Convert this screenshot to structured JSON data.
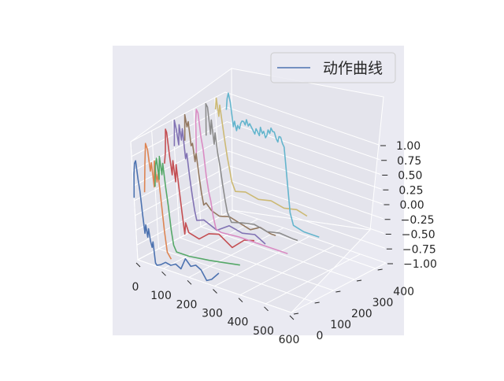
{
  "chart_data": {
    "type": "line3d",
    "title": "",
    "legend": {
      "label": "动作曲线",
      "placement": "top-right"
    },
    "axes": {
      "x": {
        "range": [
          0,
          600
        ],
        "ticks": [
          "0",
          "100",
          "200",
          "300",
          "400",
          "500",
          "600"
        ]
      },
      "y": {
        "range": [
          0,
          450
        ],
        "ticks": [
          "0",
          "100",
          "200",
          "300",
          "400"
        ]
      },
      "z": {
        "range": [
          -1,
          1
        ],
        "ticks": [
          "1.00",
          "0.75",
          "0.50",
          "0.25",
          "0.00",
          "−0.25",
          "−0.50",
          "−0.75",
          "−1.00"
        ]
      }
    },
    "grid": true,
    "series": [
      {
        "color": "#4c72b0",
        "y": 0,
        "points": [
          [
            0,
            0.05
          ],
          [
            5,
            0.45
          ],
          [
            10,
            0.65
          ],
          [
            15,
            0.7
          ],
          [
            20,
            0.4
          ],
          [
            25,
            0.2
          ],
          [
            30,
            -0.2
          ],
          [
            35,
            -0.5
          ],
          [
            40,
            -0.35
          ],
          [
            45,
            -0.55
          ],
          [
            50,
            -0.4
          ],
          [
            55,
            -0.6
          ],
          [
            60,
            -0.7
          ],
          [
            65,
            -0.6
          ],
          [
            70,
            -0.95
          ],
          [
            75,
            -0.98
          ],
          [
            90,
            -0.95
          ],
          [
            110,
            -0.88
          ],
          [
            130,
            -0.9
          ],
          [
            150,
            -0.85
          ],
          [
            170,
            -0.9
          ],
          [
            190,
            -0.7
          ],
          [
            210,
            -0.8
          ],
          [
            230,
            -0.75
          ],
          [
            250,
            -0.8
          ],
          [
            270,
            -0.95
          ],
          [
            290,
            -0.9
          ],
          [
            320,
            -0.75
          ]
        ]
      },
      {
        "color": "#dd8452",
        "y": 50,
        "points": [
          [
            0,
            0.05
          ],
          [
            8,
            0.55
          ],
          [
            15,
            0.9
          ],
          [
            22,
            0.8
          ],
          [
            28,
            0.45
          ],
          [
            34,
            0.6
          ],
          [
            40,
            0.2
          ],
          [
            46,
            0.65
          ],
          [
            52,
            0.3
          ],
          [
            58,
            0.45
          ],
          [
            64,
            0.0
          ],
          [
            70,
            -0.5
          ],
          [
            76,
            -0.85
          ],
          [
            90,
            -0.95
          ]
        ]
      },
      {
        "color": "#55a868",
        "y": 100,
        "points": [
          [
            0,
            0.05
          ],
          [
            6,
            0.4
          ],
          [
            12,
            0.55
          ],
          [
            18,
            0.2
          ],
          [
            24,
            0.6
          ],
          [
            30,
            0.3
          ],
          [
            36,
            0.5
          ],
          [
            42,
            0.1
          ],
          [
            48,
            -0.2
          ],
          [
            54,
            -0.6
          ],
          [
            60,
            -0.85
          ],
          [
            70,
            -0.95
          ],
          [
            120,
            -0.95
          ],
          [
            200,
            -0.9
          ],
          [
            260,
            -0.85
          ],
          [
            320,
            -0.8
          ]
        ]
      },
      {
        "color": "#c44e52",
        "y": 150,
        "points": [
          [
            0,
            0.35
          ],
          [
            6,
            0.55
          ],
          [
            12,
            0.95
          ],
          [
            16,
            0.9
          ],
          [
            22,
            0.5
          ],
          [
            28,
            0.2
          ],
          [
            34,
            0.45
          ],
          [
            40,
            0.1
          ],
          [
            46,
            0.4
          ],
          [
            52,
            0.0
          ],
          [
            58,
            -0.4
          ],
          [
            64,
            -0.75
          ],
          [
            70,
            -0.55
          ],
          [
            80,
            -0.7
          ],
          [
            120,
            -0.75
          ],
          [
            160,
            -0.6
          ],
          [
            200,
            -0.55
          ],
          [
            250,
            -0.7
          ],
          [
            300,
            -0.5
          ],
          [
            340,
            -0.45
          ]
        ]
      },
      {
        "color": "#8172b3",
        "y": 200,
        "points": [
          [
            0,
            0.55
          ],
          [
            6,
            1.0
          ],
          [
            12,
            0.85
          ],
          [
            18,
            0.6
          ],
          [
            24,
            0.95
          ],
          [
            30,
            0.7
          ],
          [
            36,
            0.9
          ],
          [
            42,
            0.4
          ],
          [
            48,
            0.5
          ],
          [
            54,
            0.1
          ],
          [
            60,
            -0.2
          ],
          [
            66,
            -0.45
          ],
          [
            72,
            -0.6
          ],
          [
            100,
            -0.55
          ],
          [
            150,
            -0.65
          ],
          [
            200,
            -0.5
          ],
          [
            250,
            -0.55
          ],
          [
            300,
            -0.5
          ],
          [
            340,
            -0.6
          ]
        ]
      },
      {
        "color": "#937860",
        "y": 250,
        "points": [
          [
            0,
            0.55
          ],
          [
            6,
            1.0
          ],
          [
            12,
            0.8
          ],
          [
            18,
            0.9
          ],
          [
            24,
            0.5
          ],
          [
            30,
            0.55
          ],
          [
            36,
            0.25
          ],
          [
            42,
            0.4
          ],
          [
            48,
            0.05
          ],
          [
            54,
            -0.25
          ],
          [
            60,
            -0.45
          ],
          [
            70,
            -0.4
          ],
          [
            90,
            -0.5
          ],
          [
            120,
            -0.55
          ],
          [
            160,
            -0.5
          ],
          [
            200,
            -0.55
          ],
          [
            240,
            -0.6
          ],
          [
            280,
            -0.5
          ],
          [
            320,
            -0.55
          ],
          [
            340,
            -0.55
          ]
        ]
      },
      {
        "color": "#da8bc3",
        "y": 300,
        "points": [
          [
            0,
            0.25
          ],
          [
            5,
            0.8
          ],
          [
            10,
            1.0
          ],
          [
            16,
            0.95
          ],
          [
            22,
            0.55
          ],
          [
            28,
            0.35
          ],
          [
            34,
            -0.1
          ],
          [
            40,
            -0.35
          ],
          [
            46,
            -0.5
          ],
          [
            52,
            -0.75
          ],
          [
            60,
            -0.95
          ],
          [
            80,
            -0.98
          ],
          [
            150,
            -0.95
          ],
          [
            250,
            -0.95
          ],
          [
            340,
            -0.95
          ]
        ]
      },
      {
        "color": "#8c8c8c",
        "y": 350,
        "points": [
          [
            0,
            0.45
          ],
          [
            6,
            1.0
          ],
          [
            12,
            0.95
          ],
          [
            18,
            0.5
          ],
          [
            24,
            0.75
          ],
          [
            30,
            0.35
          ],
          [
            36,
            0.55
          ],
          [
            42,
            0.2
          ],
          [
            48,
            0.0
          ],
          [
            54,
            -0.3
          ],
          [
            60,
            -0.55
          ],
          [
            66,
            -0.75
          ],
          [
            80,
            -0.9
          ],
          [
            120,
            -0.85
          ],
          [
            170,
            -0.8
          ],
          [
            220,
            -0.85
          ],
          [
            270,
            -0.8
          ],
          [
            320,
            -0.82
          ],
          [
            340,
            -0.82
          ]
        ]
      },
      {
        "color": "#ccb974",
        "y": 400,
        "points": [
          [
            0,
            0.8
          ],
          [
            6,
            1.0
          ],
          [
            12,
            0.7
          ],
          [
            18,
            0.9
          ],
          [
            24,
            0.6
          ],
          [
            30,
            0.3
          ],
          [
            36,
            0.05
          ],
          [
            42,
            -0.15
          ],
          [
            48,
            -0.35
          ],
          [
            60,
            -0.5
          ],
          [
            100,
            -0.45
          ],
          [
            150,
            -0.5
          ],
          [
            200,
            -0.45
          ],
          [
            250,
            -0.5
          ],
          [
            300,
            -0.45
          ],
          [
            340,
            -0.5
          ]
        ]
      },
      {
        "color": "#64b5cd",
        "y": 450,
        "points": [
          [
            0,
            0.7
          ],
          [
            6,
            0.9
          ],
          [
            12,
            1.0
          ],
          [
            18,
            0.85
          ],
          [
            24,
            0.45
          ],
          [
            30,
            0.55
          ],
          [
            36,
            0.4
          ],
          [
            42,
            0.5
          ],
          [
            48,
            0.45
          ],
          [
            54,
            0.55
          ],
          [
            60,
            0.6
          ],
          [
            66,
            0.6
          ],
          [
            72,
            0.55
          ],
          [
            78,
            0.65
          ],
          [
            84,
            0.55
          ],
          [
            90,
            0.6
          ],
          [
            96,
            0.55
          ],
          [
            102,
            0.5
          ],
          [
            108,
            0.45
          ],
          [
            114,
            0.55
          ],
          [
            120,
            0.5
          ],
          [
            126,
            0.45
          ],
          [
            132,
            0.6
          ],
          [
            138,
            0.5
          ],
          [
            144,
            0.55
          ],
          [
            150,
            0.45
          ],
          [
            156,
            0.5
          ],
          [
            162,
            0.6
          ],
          [
            168,
            0.55
          ],
          [
            174,
            0.65
          ],
          [
            180,
            0.6
          ],
          [
            186,
            0.6
          ],
          [
            192,
            0.5
          ],
          [
            198,
            0.45
          ],
          [
            204,
            0.55
          ],
          [
            210,
            0.55
          ],
          [
            216,
            0.45
          ],
          [
            222,
            0.4
          ],
          [
            230,
            -0.7
          ],
          [
            240,
            -0.9
          ],
          [
            280,
            -0.95
          ],
          [
            340,
            -0.95
          ]
        ]
      }
    ]
  }
}
